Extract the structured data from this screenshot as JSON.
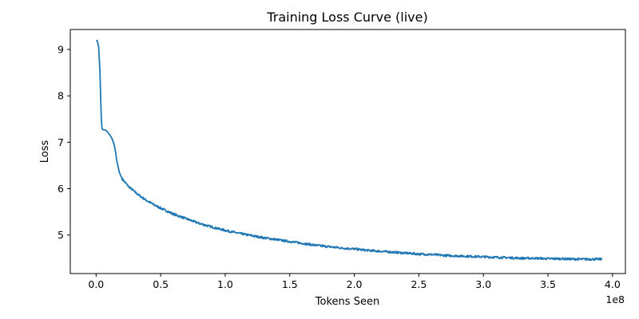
{
  "chart_data": {
    "type": "line",
    "title": "Training Loss Curve (live)",
    "xlabel": "Tokens Seen",
    "ylabel": "Loss",
    "x_scale_label": "1e8",
    "xlim": [
      -0.2,
      4.1
    ],
    "ylim": [
      4.17,
      9.43
    ],
    "x_unit_multiplier": 100000000,
    "x_ticks": [
      {
        "value": 0.0,
        "label": "0.0"
      },
      {
        "value": 0.5,
        "label": "0.5"
      },
      {
        "value": 1.0,
        "label": "1.0"
      },
      {
        "value": 1.5,
        "label": "1.5"
      },
      {
        "value": 2.0,
        "label": "2.0"
      },
      {
        "value": 2.5,
        "label": "2.5"
      },
      {
        "value": 3.0,
        "label": "3.0"
      },
      {
        "value": 3.5,
        "label": "3.5"
      },
      {
        "value": 4.0,
        "label": "4.0"
      }
    ],
    "y_ticks": [
      {
        "value": 5,
        "label": "5"
      },
      {
        "value": 6,
        "label": "6"
      },
      {
        "value": 7,
        "label": "7"
      },
      {
        "value": 8,
        "label": "8"
      },
      {
        "value": 9,
        "label": "9"
      }
    ],
    "grid": false,
    "series": [
      {
        "color": "#1f77b4",
        "x": [
          0.0,
          0.01,
          0.02,
          0.03,
          0.035,
          0.04,
          0.045,
          0.05,
          0.06,
          0.08,
          0.1,
          0.12,
          0.14,
          0.15,
          0.16,
          0.18,
          0.2,
          0.22,
          0.25,
          0.3,
          0.35,
          0.4,
          0.45,
          0.5,
          0.6,
          0.7,
          0.8,
          0.9,
          1.0,
          1.1,
          1.2,
          1.3,
          1.4,
          1.5,
          1.6,
          1.7,
          1.8,
          1.9,
          2.0,
          2.1,
          2.2,
          2.3,
          2.4,
          2.5,
          2.6,
          2.7,
          2.8,
          2.9,
          3.0,
          3.1,
          3.2,
          3.3,
          3.4,
          3.5,
          3.6,
          3.7,
          3.8,
          3.92
        ],
        "y": [
          9.2,
          9.18,
          9.05,
          8.5,
          8.0,
          7.55,
          7.32,
          7.27,
          7.27,
          7.25,
          7.18,
          7.1,
          6.95,
          6.8,
          6.6,
          6.35,
          6.22,
          6.15,
          6.05,
          5.93,
          5.82,
          5.73,
          5.65,
          5.58,
          5.45,
          5.35,
          5.25,
          5.17,
          5.1,
          5.04,
          4.99,
          4.94,
          4.9,
          4.86,
          4.82,
          4.78,
          4.75,
          4.72,
          4.7,
          4.67,
          4.65,
          4.63,
          4.61,
          4.59,
          4.58,
          4.56,
          4.55,
          4.54,
          4.53,
          4.52,
          4.51,
          4.5,
          4.5,
          4.49,
          4.49,
          4.48,
          4.48,
          4.48
        ]
      }
    ]
  }
}
